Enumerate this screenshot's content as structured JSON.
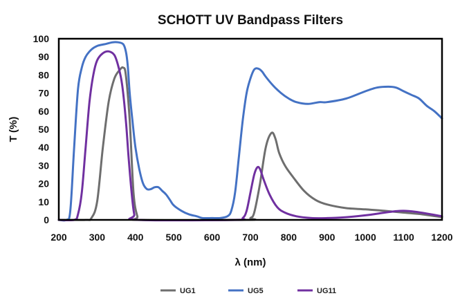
{
  "chart_data": {
    "type": "line",
    "title": "SCHOTT UV Bandpass Filters",
    "xlabel": "λ (nm)",
    "ylabel": "T (%)",
    "xlim": [
      200,
      1200
    ],
    "ylim": [
      0,
      100
    ],
    "x_ticks": [
      200,
      300,
      400,
      500,
      600,
      700,
      800,
      900,
      1000,
      1100,
      1200
    ],
    "y_ticks": [
      0,
      10,
      20,
      30,
      40,
      50,
      60,
      70,
      80,
      90,
      100
    ],
    "grid": false,
    "legend_position": "bottom",
    "series": [
      {
        "name": "UG1",
        "color": "#6e6e6e",
        "points": [
          [
            200,
            0
          ],
          [
            270,
            0
          ],
          [
            285,
            1
          ],
          [
            300,
            10
          ],
          [
            315,
            40
          ],
          [
            330,
            65
          ],
          [
            345,
            78
          ],
          [
            360,
            83
          ],
          [
            368,
            84
          ],
          [
            375,
            80
          ],
          [
            385,
            55
          ],
          [
            395,
            15
          ],
          [
            405,
            2
          ],
          [
            415,
            0
          ],
          [
            690,
            0
          ],
          [
            700,
            1
          ],
          [
            710,
            4
          ],
          [
            725,
            20
          ],
          [
            740,
            40
          ],
          [
            755,
            48
          ],
          [
            765,
            45
          ],
          [
            775,
            37
          ],
          [
            790,
            30
          ],
          [
            810,
            24
          ],
          [
            840,
            16
          ],
          [
            870,
            11
          ],
          [
            900,
            8.5
          ],
          [
            950,
            6.5
          ],
          [
            1000,
            5.8
          ],
          [
            1050,
            5
          ],
          [
            1100,
            4
          ],
          [
            1150,
            3
          ],
          [
            1200,
            1.5
          ]
        ]
      },
      {
        "name": "UG5",
        "color": "#4472c4",
        "points": [
          [
            200,
            0
          ],
          [
            220,
            0
          ],
          [
            230,
            5
          ],
          [
            240,
            40
          ],
          [
            250,
            72
          ],
          [
            260,
            84
          ],
          [
            270,
            90
          ],
          [
            285,
            94
          ],
          [
            300,
            96
          ],
          [
            320,
            97
          ],
          [
            340,
            98
          ],
          [
            355,
            98
          ],
          [
            368,
            97
          ],
          [
            375,
            93
          ],
          [
            380,
            85
          ],
          [
            385,
            70
          ],
          [
            392,
            55
          ],
          [
            400,
            40
          ],
          [
            410,
            28
          ],
          [
            420,
            20
          ],
          [
            430,
            17
          ],
          [
            440,
            17
          ],
          [
            450,
            18
          ],
          [
            460,
            18
          ],
          [
            470,
            16
          ],
          [
            480,
            14
          ],
          [
            490,
            11
          ],
          [
            500,
            8
          ],
          [
            520,
            5
          ],
          [
            540,
            3
          ],
          [
            560,
            2
          ],
          [
            575,
            1
          ],
          [
            600,
            1
          ],
          [
            620,
            1
          ],
          [
            640,
            2
          ],
          [
            650,
            5
          ],
          [
            660,
            15
          ],
          [
            670,
            35
          ],
          [
            680,
            55
          ],
          [
            690,
            70
          ],
          [
            700,
            78
          ],
          [
            710,
            83
          ],
          [
            720,
            83.5
          ],
          [
            730,
            82
          ],
          [
            740,
            79
          ],
          [
            760,
            74
          ],
          [
            780,
            70
          ],
          [
            800,
            67
          ],
          [
            820,
            65
          ],
          [
            850,
            64
          ],
          [
            880,
            65
          ],
          [
            900,
            65
          ],
          [
            950,
            67
          ],
          [
            1000,
            71
          ],
          [
            1030,
            73
          ],
          [
            1060,
            73.5
          ],
          [
            1080,
            73
          ],
          [
            1100,
            71
          ],
          [
            1120,
            69
          ],
          [
            1140,
            67
          ],
          [
            1160,
            63
          ],
          [
            1180,
            60
          ],
          [
            1200,
            56
          ]
        ]
      },
      {
        "name": "UG11",
        "color": "#7030a0",
        "points": [
          [
            200,
            0
          ],
          [
            240,
            0
          ],
          [
            250,
            3
          ],
          [
            260,
            15
          ],
          [
            270,
            40
          ],
          [
            280,
            65
          ],
          [
            290,
            80
          ],
          [
            300,
            88
          ],
          [
            315,
            92
          ],
          [
            330,
            93
          ],
          [
            345,
            91
          ],
          [
            355,
            85
          ],
          [
            365,
            75
          ],
          [
            375,
            55
          ],
          [
            382,
            35
          ],
          [
            390,
            15
          ],
          [
            397,
            3
          ],
          [
            405,
            0
          ],
          [
            660,
            0
          ],
          [
            680,
            1
          ],
          [
            690,
            5
          ],
          [
            700,
            15
          ],
          [
            710,
            25
          ],
          [
            718,
            29
          ],
          [
            725,
            28
          ],
          [
            735,
            22
          ],
          [
            750,
            14
          ],
          [
            770,
            7
          ],
          [
            790,
            4
          ],
          [
            820,
            2
          ],
          [
            860,
            1
          ],
          [
            900,
            1
          ],
          [
            950,
            1.5
          ],
          [
            1000,
            2.5
          ],
          [
            1050,
            4
          ],
          [
            1080,
            4.8
          ],
          [
            1100,
            5
          ],
          [
            1130,
            4.5
          ],
          [
            1160,
            3.5
          ],
          [
            1200,
            2
          ]
        ]
      }
    ]
  }
}
